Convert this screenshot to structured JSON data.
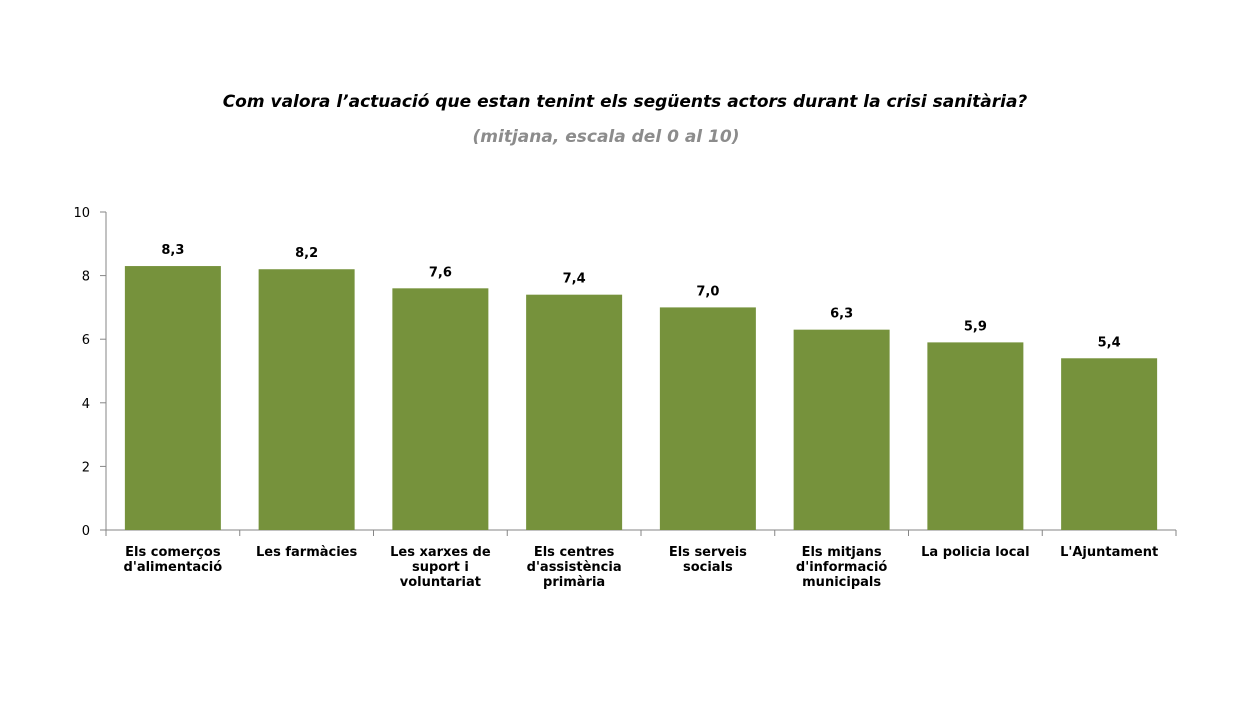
{
  "chart_data": {
    "type": "bar",
    "title": "Com valora l’actuació que estan tenint els següents actors durant la crisi sanitària?",
    "subtitle": "(mitjana, escala del 0 al 10)",
    "categories": [
      [
        "Els comerços",
        "d'alimentació"
      ],
      [
        "Les farmàcies"
      ],
      [
        "Les xarxes de",
        "suport i",
        "voluntariat"
      ],
      [
        "Els centres",
        "d'assistència",
        "primària"
      ],
      [
        "Els serveis",
        "socials"
      ],
      [
        "Els mitjans",
        "d'informació",
        "municipals"
      ],
      [
        "La policia local"
      ],
      [
        "L'Ajuntament"
      ]
    ],
    "values": [
      8.3,
      8.2,
      7.6,
      7.4,
      7.0,
      6.3,
      5.9,
      5.4
    ],
    "data_labels": [
      "8,3",
      "8,2",
      "7,6",
      "7,4",
      "7,0",
      "6,3",
      "5,9",
      "5,4"
    ],
    "ylim": [
      0,
      10
    ],
    "yticks": [
      0,
      2,
      4,
      6,
      8,
      10
    ],
    "bar_color": "#76923c",
    "grid": false,
    "legend": "none"
  }
}
